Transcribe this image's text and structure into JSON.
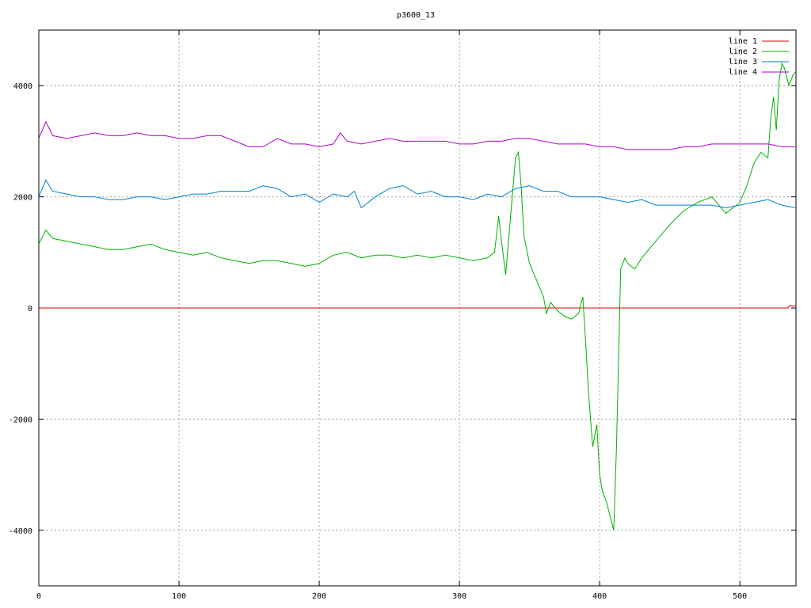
{
  "chart_data": {
    "type": "line",
    "title": "p3600_13",
    "xlabel": "",
    "ylabel": "",
    "xlim": [
      0,
      540
    ],
    "ylim": [
      -5000,
      5000
    ],
    "x_ticks": [
      0,
      100,
      200,
      300,
      400,
      500
    ],
    "y_ticks": [
      -4000,
      -2000,
      0,
      2000,
      4000
    ],
    "x_tick_labels": [
      "0",
      "100",
      "200",
      "300",
      "400",
      "500"
    ],
    "y_tick_labels": [
      "-4000",
      "-2000",
      "0",
      "2000",
      "4000"
    ],
    "grid": true,
    "legend_position": "top-right",
    "series": [
      {
        "name": "line 1",
        "color": "#e00000",
        "x": [
          0,
          100,
          200,
          300,
          400,
          500,
          534,
          536,
          538,
          540
        ],
        "y": [
          0,
          0,
          0,
          0,
          0,
          0,
          0,
          50,
          30,
          50
        ]
      },
      {
        "name": "line 2",
        "color": "#00b000",
        "x": [
          0,
          5,
          10,
          20,
          30,
          40,
          50,
          60,
          70,
          80,
          90,
          100,
          110,
          120,
          130,
          140,
          150,
          160,
          170,
          180,
          190,
          200,
          210,
          220,
          230,
          240,
          250,
          260,
          270,
          280,
          290,
          300,
          310,
          320,
          325,
          328,
          330,
          333,
          336,
          340,
          342,
          344,
          346,
          350,
          355,
          360,
          362,
          365,
          370,
          375,
          380,
          385,
          388,
          390,
          392,
          395,
          398,
          400,
          402,
          405,
          408,
          410,
          412,
          415,
          418,
          420,
          425,
          430,
          440,
          450,
          460,
          470,
          480,
          490,
          500,
          505,
          510,
          515,
          520,
          522,
          524,
          526,
          528,
          530,
          532,
          535,
          538,
          540
        ],
        "y": [
          1150,
          1400,
          1250,
          1200,
          1150,
          1100,
          1050,
          1050,
          1100,
          1150,
          1050,
          1000,
          950,
          1000,
          900,
          850,
          800,
          850,
          850,
          800,
          750,
          800,
          950,
          1000,
          900,
          950,
          950,
          900,
          950,
          900,
          950,
          900,
          850,
          900,
          1000,
          1650,
          1200,
          600,
          1500,
          2700,
          2800,
          2200,
          1300,
          800,
          500,
          200,
          -100,
          100,
          -50,
          -150,
          -200,
          -100,
          200,
          -600,
          -1500,
          -2500,
          -2100,
          -3000,
          -3300,
          -3500,
          -3800,
          -4000,
          -2500,
          700,
          900,
          800,
          700,
          900,
          1200,
          1500,
          1750,
          1900,
          2000,
          1700,
          1900,
          2200,
          2600,
          2800,
          2700,
          3400,
          3800,
          3200,
          4100,
          4400,
          4300,
          4000,
          4200,
          4250
        ]
      },
      {
        "name": "line 3",
        "color": "#0080d0",
        "x": [
          0,
          5,
          10,
          20,
          30,
          40,
          50,
          60,
          70,
          80,
          90,
          100,
          110,
          120,
          130,
          140,
          150,
          160,
          170,
          180,
          190,
          200,
          210,
          220,
          225,
          230,
          240,
          250,
          260,
          270,
          280,
          290,
          300,
          310,
          320,
          330,
          340,
          350,
          360,
          370,
          380,
          390,
          400,
          410,
          420,
          430,
          440,
          450,
          460,
          470,
          480,
          490,
          500,
          510,
          520,
          530,
          540
        ],
        "y": [
          2000,
          2300,
          2100,
          2050,
          2000,
          2000,
          1950,
          1950,
          2000,
          2000,
          1950,
          2000,
          2050,
          2050,
          2100,
          2100,
          2100,
          2200,
          2150,
          2000,
          2050,
          1900,
          2050,
          2000,
          2100,
          1800,
          2000,
          2150,
          2200,
          2050,
          2100,
          2000,
          2000,
          1950,
          2050,
          2000,
          2150,
          2200,
          2100,
          2100,
          2000,
          2000,
          2000,
          1950,
          1900,
          1950,
          1850,
          1850,
          1850,
          1850,
          1850,
          1800,
          1850,
          1900,
          1950,
          1850,
          1800
        ]
      },
      {
        "name": "line 4",
        "color": "#b000d0",
        "x": [
          0,
          5,
          10,
          20,
          30,
          40,
          50,
          60,
          70,
          80,
          90,
          100,
          110,
          120,
          130,
          140,
          150,
          160,
          170,
          180,
          190,
          200,
          210,
          215,
          220,
          230,
          240,
          250,
          260,
          270,
          280,
          290,
          300,
          310,
          320,
          330,
          340,
          350,
          360,
          370,
          380,
          390,
          400,
          410,
          420,
          430,
          440,
          450,
          460,
          470,
          480,
          490,
          500,
          510,
          520,
          530,
          540
        ],
        "y": [
          3050,
          3350,
          3100,
          3050,
          3100,
          3150,
          3100,
          3100,
          3150,
          3100,
          3100,
          3050,
          3050,
          3100,
          3100,
          3000,
          2900,
          2900,
          3050,
          2950,
          2950,
          2900,
          2950,
          3150,
          3000,
          2950,
          3000,
          3050,
          3000,
          3000,
          3000,
          3000,
          2950,
          2950,
          3000,
          3000,
          3050,
          3050,
          3000,
          2950,
          2950,
          2950,
          2900,
          2900,
          2850,
          2850,
          2850,
          2850,
          2900,
          2900,
          2950,
          2950,
          2950,
          2950,
          2950,
          2900,
          2900
        ]
      }
    ]
  }
}
